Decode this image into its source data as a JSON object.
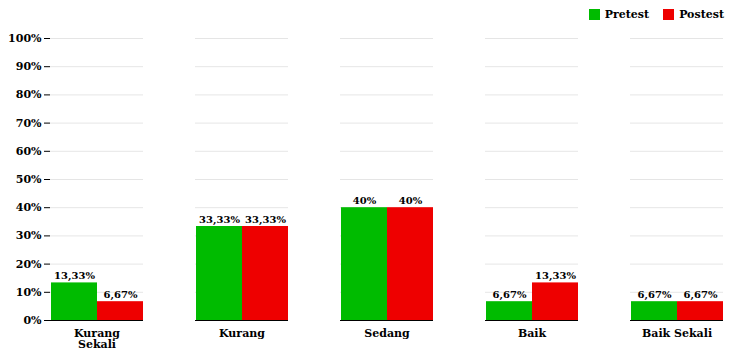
{
  "chart_data": {
    "type": "bar",
    "categories": [
      "Kurang\nSekali",
      "Kurang",
      "Sedang",
      "Baik",
      "Baik Sekali"
    ],
    "series": [
      {
        "name": "Pretest",
        "color": "#00BB00",
        "values": [
          13.33,
          33.33,
          40.0,
          6.67,
          6.67
        ],
        "value_labels": [
          "13,33%",
          "33,33%",
          "40%",
          "6,67%",
          "6,67%"
        ]
      },
      {
        "name": "Postest",
        "color": "#EE0000",
        "values": [
          6.67,
          33.33,
          40.0,
          13.33,
          6.67
        ],
        "value_labels": [
          "6,67%",
          "33,33%",
          "40%",
          "13,33%",
          "6,67%"
        ]
      }
    ],
    "ylim": [
      0,
      100
    ],
    "yticks": [
      {
        "value": 0,
        "label": "0%"
      },
      {
        "value": 10,
        "label": "10%"
      },
      {
        "value": 20,
        "label": "20%"
      },
      {
        "value": 30,
        "label": "30%"
      },
      {
        "value": 40,
        "label": "40%"
      },
      {
        "value": 50,
        "label": "50%"
      },
      {
        "value": 60,
        "label": "60%"
      },
      {
        "value": 70,
        "label": "70%"
      },
      {
        "value": 80,
        "label": "80%"
      },
      {
        "value": 90,
        "label": "90%"
      },
      {
        "value": 100,
        "label": "100%"
      }
    ],
    "grid": true,
    "legend": "upper right",
    "data_labels": true
  }
}
